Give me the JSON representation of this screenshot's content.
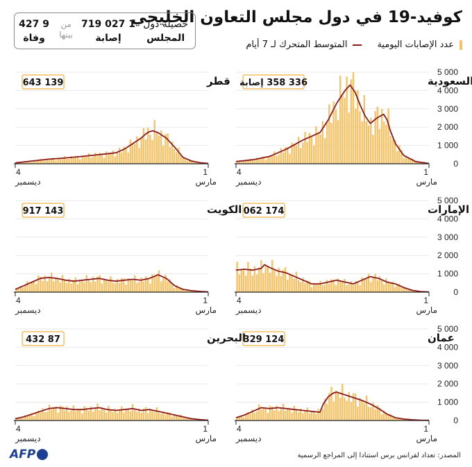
{
  "title": "كوفيد-19 في دول مجلس التعاون الخليجي",
  "legend": {
    "bars_label": "عدد الإصابات اليومية",
    "line_label": "المتوسط المتحرك لـ 7 أيام"
  },
  "summary": {
    "label_line1": "حصيلة دول",
    "label_line2": "المجلس",
    "cases_value": "1 027 719",
    "cases_label": "إصابة",
    "between_line1": "من",
    "between_line2": "بينها",
    "deaths_value": "9 427",
    "deaths_label": "وفاة"
  },
  "source": "المصدر: تعداد لفرانس برس استنادا إلى المراجع الرسمية",
  "logo": "AFP",
  "colors": {
    "bars": "#f5c265",
    "line": "#8b1a1f",
    "box_border": "#f0b040",
    "axis": "#222222"
  },
  "chart_data": [
    {
      "type": "bar",
      "country": "السعودية",
      "total": "336 358 إصابة",
      "ylim": [
        0,
        5000
      ],
      "y_ticks": [
        "0",
        "1 000",
        "2 000",
        "3 000",
        "4 000",
        "5 000"
      ],
      "x_labels": {
        "start_day": "4",
        "start_month": "ديسمبر",
        "end_day": "1",
        "end_month": "مارس"
      },
      "x": [
        0,
        10,
        20,
        30,
        40,
        50,
        55,
        60,
        65,
        68,
        71,
        74,
        77,
        80,
        84,
        88,
        90,
        92,
        95,
        100,
        107,
        115
      ],
      "values": [
        120,
        220,
        400,
        800,
        1300,
        1700,
        2400,
        3300,
        4000,
        4300,
        3900,
        3200,
        2600,
        2200,
        2500,
        2700,
        2400,
        1800,
        1100,
        450,
        120,
        20
      ]
    },
    {
      "type": "bar",
      "country": "قطر",
      "total": "139 643",
      "ylim": [
        0,
        5000
      ],
      "x_labels": {
        "start_day": "4",
        "start_month": "ديسمبر",
        "end_day": "1",
        "end_month": "مارس"
      },
      "x": [
        0,
        10,
        20,
        30,
        40,
        50,
        60,
        65,
        70,
        75,
        78,
        80,
        82,
        85,
        90,
        95,
        100,
        105,
        110,
        115
      ],
      "values": [
        50,
        150,
        250,
        320,
        400,
        500,
        600,
        800,
        1100,
        1400,
        1650,
        1750,
        1800,
        1700,
        1400,
        900,
        350,
        150,
        60,
        20
      ]
    },
    {
      "type": "bar",
      "country": "الإمارات",
      "total": "174 062",
      "ylim": [
        0,
        5000
      ],
      "y_ticks": [
        "0",
        "1 000",
        "2 000",
        "3 000",
        "4 000",
        "5 000"
      ],
      "x_labels": {
        "start_day": "4",
        "start_month": "ديسمبر",
        "end_day": "1",
        "end_month": "مارس"
      },
      "x": [
        0,
        5,
        10,
        15,
        17,
        20,
        25,
        30,
        35,
        40,
        45,
        50,
        55,
        60,
        65,
        70,
        75,
        80,
        85,
        90,
        95,
        100,
        105,
        110,
        115
      ],
      "values": [
        1200,
        1250,
        1200,
        1300,
        1500,
        1350,
        1150,
        1050,
        850,
        650,
        450,
        450,
        550,
        650,
        550,
        450,
        650,
        850,
        750,
        550,
        450,
        250,
        100,
        30,
        10
      ]
    },
    {
      "type": "bar",
      "country": "الكويت",
      "total": "143 917",
      "ylim": [
        0,
        5000
      ],
      "x_labels": {
        "start_day": "4",
        "start_month": "ديسمبر",
        "end_day": "1",
        "end_month": "مارس"
      },
      "x": [
        0,
        5,
        10,
        15,
        20,
        25,
        30,
        35,
        40,
        45,
        50,
        55,
        60,
        65,
        70,
        75,
        80,
        85,
        90,
        95,
        100,
        105,
        110,
        115
      ],
      "values": [
        150,
        350,
        550,
        750,
        800,
        750,
        650,
        600,
        650,
        700,
        750,
        650,
        600,
        650,
        700,
        650,
        750,
        950,
        750,
        350,
        150,
        80,
        40,
        20
      ]
    },
    {
      "type": "bar",
      "country": "عمان",
      "total": "124 329",
      "ylim": [
        0,
        5000
      ],
      "y_ticks": [
        "0",
        "1 000",
        "2 000",
        "3 000",
        "4 000",
        "5 000"
      ],
      "x_labels": {
        "start_day": "4",
        "start_month": "ديسمبر",
        "end_day": "1",
        "end_month": "مارس"
      },
      "x": [
        0,
        5,
        10,
        15,
        20,
        25,
        30,
        35,
        40,
        45,
        50,
        52,
        55,
        58,
        60,
        65,
        70,
        75,
        80,
        85,
        90,
        95,
        100,
        105,
        110,
        115
      ],
      "values": [
        150,
        300,
        500,
        700,
        650,
        700,
        650,
        600,
        550,
        500,
        450,
        900,
        1300,
        1500,
        1550,
        1400,
        1250,
        1100,
        900,
        650,
        350,
        150,
        80,
        40,
        20,
        10
      ]
    },
    {
      "type": "bar",
      "country": "البحرين",
      "total": "87 432",
      "ylim": [
        0,
        5000
      ],
      "x_labels": {
        "start_day": "4",
        "start_month": "ديسمبر",
        "end_day": "1",
        "end_month": "مارس"
      },
      "x": [
        0,
        5,
        10,
        15,
        20,
        25,
        30,
        35,
        40,
        45,
        50,
        55,
        60,
        65,
        70,
        75,
        80,
        85,
        90,
        95,
        100,
        105,
        110,
        115
      ],
      "values": [
        100,
        200,
        350,
        500,
        650,
        700,
        650,
        600,
        600,
        650,
        700,
        600,
        550,
        600,
        650,
        550,
        600,
        500,
        400,
        300,
        200,
        100,
        50,
        20
      ]
    }
  ]
}
